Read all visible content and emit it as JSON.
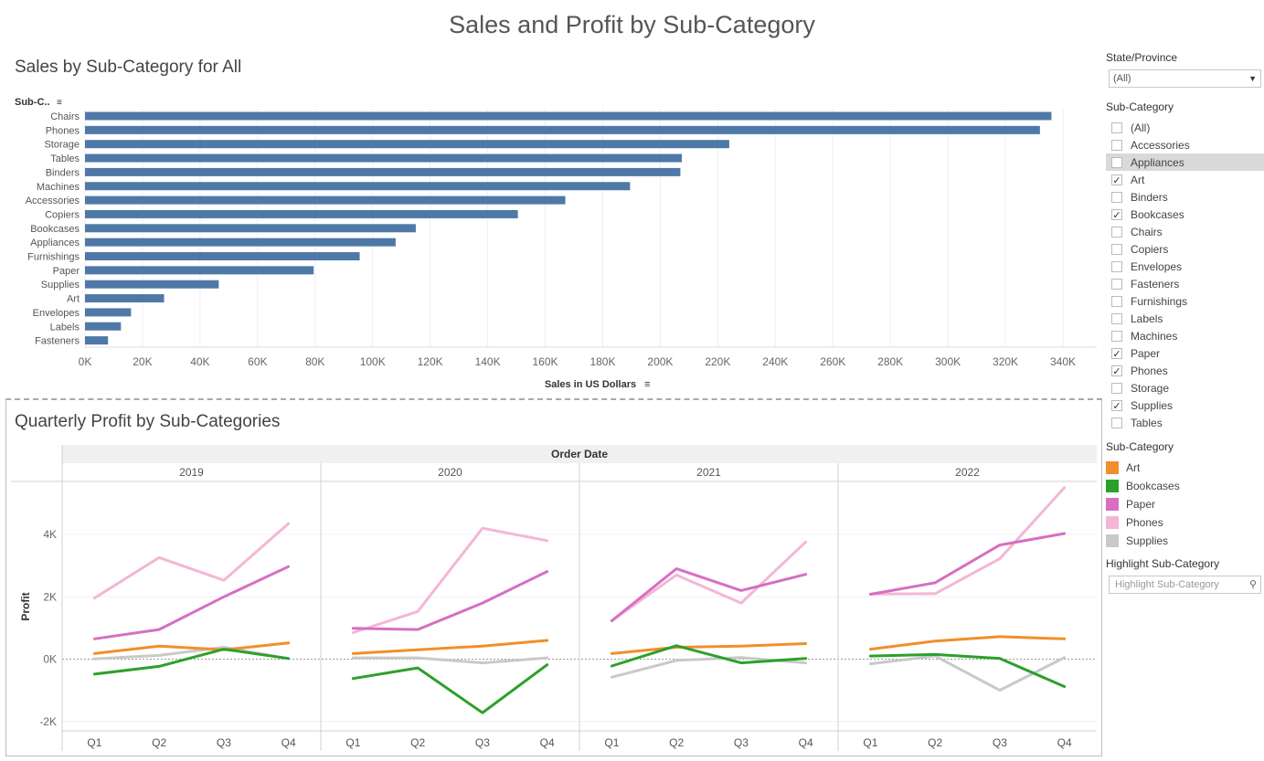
{
  "dashboard_title": "Sales and Profit by Sub-Category",
  "colors": {
    "bar": "#4e79a7",
    "Art": "#f28e2b",
    "Bookcases": "#2ca02c",
    "Paper": "#d66fc2",
    "Phones": "#f4b6d6",
    "Supplies": "#c9c9c9"
  },
  "chart_data": [
    {
      "type": "bar",
      "title": "Sales by Sub-Category for All",
      "ylabel": "Sub-C..",
      "xlabel": "Sales in US Dollars",
      "categories": [
        "Chairs",
        "Phones",
        "Storage",
        "Tables",
        "Binders",
        "Machines",
        "Accessories",
        "Copiers",
        "Bookcases",
        "Appliances",
        "Furnishings",
        "Paper",
        "Supplies",
        "Art",
        "Envelopes",
        "Labels",
        "Fasteners"
      ],
      "values": [
        336000,
        332000,
        224000,
        207500,
        207000,
        189500,
        167000,
        150500,
        115000,
        108000,
        95500,
        79500,
        46500,
        27500,
        16000,
        12500,
        8000
      ],
      "xlim": [
        0,
        350000
      ],
      "ticks": [
        0,
        20000,
        40000,
        60000,
        80000,
        100000,
        120000,
        140000,
        160000,
        180000,
        200000,
        220000,
        240000,
        260000,
        280000,
        300000,
        320000,
        340000
      ],
      "tick_labels": [
        "0K",
        "20K",
        "40K",
        "60K",
        "80K",
        "100K",
        "120K",
        "140K",
        "160K",
        "180K",
        "200K",
        "220K",
        "240K",
        "260K",
        "280K",
        "300K",
        "320K",
        "340K"
      ],
      "grid": true
    },
    {
      "type": "line",
      "title": "Quarterly Profit by Sub-Categories",
      "column_header": "Order Date",
      "years": [
        "2019",
        "2020",
        "2021",
        "2022"
      ],
      "quarters": [
        "Q1",
        "Q2",
        "Q3",
        "Q4"
      ],
      "ylabel": "Profit",
      "ylim": [
        -2300,
        5700
      ],
      "y_ticks": [
        -2000,
        0,
        2000,
        4000
      ],
      "y_tick_labels": [
        "-2K",
        "0K",
        "2K",
        "4K"
      ],
      "series": [
        {
          "name": "Art",
          "values": [
            [
              180,
              420,
              300,
              520
            ],
            [
              180,
              300,
              420,
              600
            ],
            [
              180,
              380,
              420,
              500
            ],
            [
              320,
              580,
              720,
              650
            ]
          ]
        },
        {
          "name": "Bookcases",
          "values": [
            [
              -480,
              -230,
              320,
              20
            ],
            [
              -620,
              -280,
              -1720,
              -180
            ],
            [
              -220,
              430,
              -120,
              20
            ],
            [
              100,
              150,
              20,
              -880
            ]
          ]
        },
        {
          "name": "Paper",
          "values": [
            [
              650,
              950,
              2000,
              2970
            ],
            [
              990,
              950,
              1800,
              2810
            ],
            [
              1230,
              2900,
              2200,
              2720
            ],
            [
              2080,
              2450,
              3660,
              4030
            ]
          ]
        },
        {
          "name": "Phones",
          "values": [
            [
              1960,
              3260,
              2530,
              4350
            ],
            [
              850,
              1530,
              4200,
              3800
            ],
            [
              1230,
              2700,
              1800,
              3760
            ],
            [
              2090,
              2100,
              3220,
              5500
            ]
          ]
        },
        {
          "name": "Supplies",
          "values": [
            [
              10,
              120,
              380,
              20
            ],
            [
              40,
              40,
              -120,
              40
            ],
            [
              -580,
              -40,
              50,
              -120
            ],
            [
              -150,
              100,
              -1000,
              50
            ]
          ]
        }
      ]
    }
  ],
  "filters": {
    "state_label": "State/Province",
    "state_value": "(All)",
    "sub_label": "Sub-Category",
    "items": [
      {
        "label": "(All)",
        "checked": false
      },
      {
        "label": "Accessories",
        "checked": false
      },
      {
        "label": "Appliances",
        "checked": false,
        "highlight": true
      },
      {
        "label": "Art",
        "checked": true
      },
      {
        "label": "Binders",
        "checked": false
      },
      {
        "label": "Bookcases",
        "checked": true
      },
      {
        "label": "Chairs",
        "checked": false
      },
      {
        "label": "Copiers",
        "checked": false
      },
      {
        "label": "Envelopes",
        "checked": false
      },
      {
        "label": "Fasteners",
        "checked": false
      },
      {
        "label": "Furnishings",
        "checked": false
      },
      {
        "label": "Labels",
        "checked": false
      },
      {
        "label": "Machines",
        "checked": false
      },
      {
        "label": "Paper",
        "checked": true
      },
      {
        "label": "Phones",
        "checked": true
      },
      {
        "label": "Storage",
        "checked": false
      },
      {
        "label": "Supplies",
        "checked": true
      },
      {
        "label": "Tables",
        "checked": false
      }
    ],
    "check_glyph": "✓"
  },
  "legend": {
    "title": "Sub-Category",
    "items": [
      "Art",
      "Bookcases",
      "Paper",
      "Phones",
      "Supplies"
    ]
  },
  "highlight": {
    "label": "Highlight Sub-Category",
    "placeholder": "Highlight Sub-Category"
  }
}
